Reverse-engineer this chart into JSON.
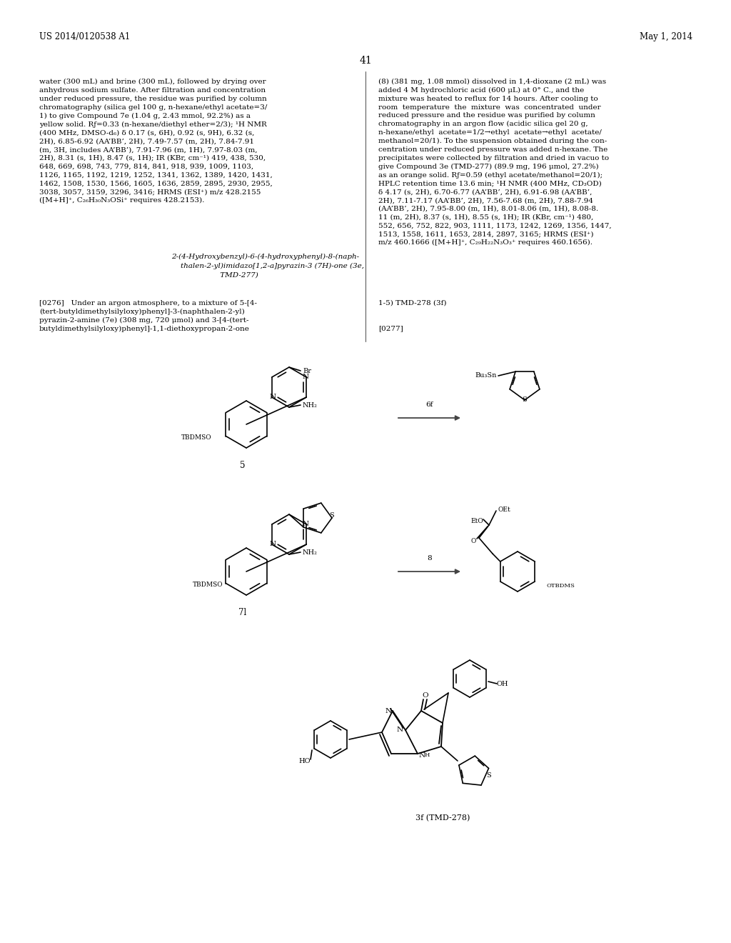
{
  "bg_color": "#ffffff",
  "header_left": "US 2014/0120538 A1",
  "header_right": "May 1, 2014",
  "page_number": "41",
  "font_size_body": 7.5,
  "font_size_header": 8.5,
  "font_size_page": 9.5
}
